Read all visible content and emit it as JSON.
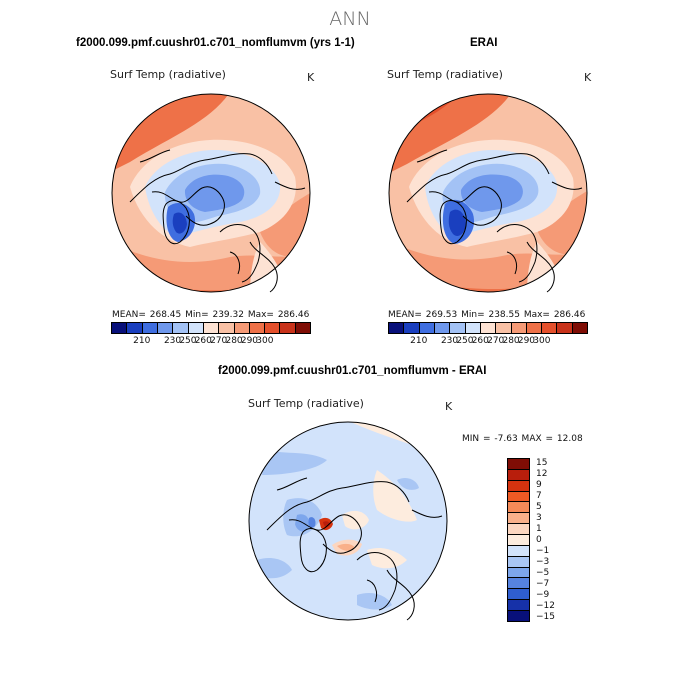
{
  "figure": {
    "title": "ANN",
    "variable": "Surf Temp (radiative)",
    "units": "K"
  },
  "panels": [
    {
      "title": "f2000.099.pmf.cuushr01.c701_nomflumvm (yrs 1-1)",
      "variable": "Surf Temp (radiative)",
      "units": "K",
      "mean": "268.45",
      "min": "239.32",
      "max": "286.46",
      "stats_text": "MEAN= 268.45   Min= 239.32   Max= 286.46",
      "colorbar_ticks": [
        "210",
        "230",
        "250",
        "260",
        "270",
        "280",
        "290",
        "300"
      ]
    },
    {
      "title": "ERAI",
      "variable": "Surf Temp (radiative)",
      "units": "K",
      "mean": "269.53",
      "min": "238.55",
      "max": "286.46",
      "stats_text": "MEAN= 269.53   Min= 238.55   Max= 286.46",
      "colorbar_ticks": [
        "210",
        "230",
        "250",
        "260",
        "270",
        "280",
        "290",
        "300"
      ]
    },
    {
      "title": "f2000.099.pmf.cuushr01.c701_nomflumvm - ERAI",
      "variable": "Surf Temp (radiative)",
      "units": "K",
      "min": "-7.63",
      "max": "12.08",
      "stats_text": "MIN =   -7.63  MAX =   12.08",
      "colorbar_ticks": [
        "15",
        "12",
        "9",
        "7",
        "5",
        "3",
        "1",
        "0",
        "−1",
        "−3",
        "−5",
        "−7",
        "−9",
        "−12",
        "−15"
      ]
    }
  ],
  "colors": {
    "abs_scale": [
      "#08107a",
      "#1a3fbf",
      "#3f6ee0",
      "#6f98ec",
      "#a3c2f5",
      "#d2e3fb",
      "#fde2d3",
      "#f9c1a5",
      "#f59a76",
      "#ee7148",
      "#e4502c",
      "#c8321a",
      "#7f0d05"
    ],
    "diff_scale": [
      "#7f0d05",
      "#b81e0c",
      "#d6330f",
      "#ef5a24",
      "#f58a58",
      "#f9b08a",
      "#fcd6c0",
      "#fdecde",
      "#d2e3fb",
      "#a9c6f4",
      "#7da6ec",
      "#5683e0",
      "#2f5ed0",
      "#1631a8",
      "#08107a"
    ],
    "land_outline": "#000000"
  }
}
